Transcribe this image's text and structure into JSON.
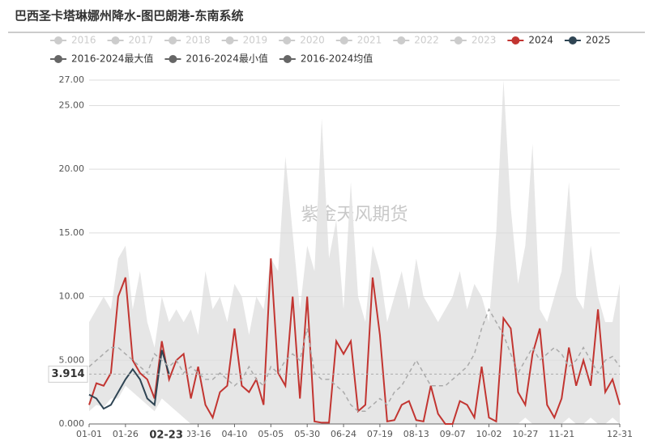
{
  "chart_data": {
    "type": "line",
    "title": "巴西圣卡塔琳娜州降水-图巴朗港-东南系统",
    "watermark": "紫金天风期货",
    "categories": [
      "01-01",
      null,
      null,
      null,
      null,
      "01-26",
      null,
      null,
      null,
      null,
      null,
      null,
      null,
      null,
      null,
      "03-16",
      null,
      null,
      null,
      null,
      "04-10",
      null,
      null,
      null,
      null,
      "05-05",
      null,
      null,
      null,
      null,
      "05-30",
      null,
      null,
      null,
      null,
      "06-24",
      null,
      null,
      null,
      null,
      "07-19",
      null,
      null,
      null,
      null,
      "08-13",
      null,
      null,
      null,
      null,
      "09-07",
      null,
      null,
      null,
      null,
      "10-02",
      null,
      null,
      null,
      null,
      "10-27",
      null,
      null,
      null,
      null,
      "11-21",
      null,
      null,
      null,
      null,
      null,
      null,
      null,
      "12-31"
    ],
    "legend_inactive": [
      "2016",
      "2017",
      "2018",
      "2019",
      "2020",
      "2021",
      "2022",
      "2023"
    ],
    "legend_inactive_color": "#ccc",
    "band_color": "#e6e6e6",
    "series": [
      {
        "name": "2024",
        "color": "#c23531",
        "values": [
          1.5,
          3.2,
          3.0,
          4.0,
          10,
          11.5,
          5,
          4,
          3.5,
          2.0,
          6.5,
          3.5,
          5,
          5.5,
          2,
          4.5,
          1.5,
          0.5,
          2.5,
          3,
          7.5,
          3,
          2.5,
          3.5,
          1.5,
          13,
          4,
          3,
          10,
          2,
          10,
          0.2,
          0.1,
          0.1,
          6.5,
          5.5,
          6.5,
          1,
          1.5,
          11.5,
          7,
          0.2,
          0.3,
          1.5,
          1.8,
          0.3,
          0.2,
          3,
          0.8,
          0,
          0,
          1.8,
          1.5,
          0.5,
          4.5,
          0.5,
          0.2,
          8.3,
          7.5,
          2.5,
          1.5,
          5.5,
          7.5,
          1.5,
          0.5,
          2,
          6,
          3,
          5,
          3,
          9,
          2.5,
          3.5,
          1.5
        ]
      },
      {
        "name": "2025",
        "color": "#2f4554",
        "values": [
          2.3,
          2.0,
          1.2,
          1.5,
          2.5,
          3.5,
          4.3,
          3.5,
          2.0,
          1.5,
          5.8,
          3.914,
          null,
          null,
          null,
          null,
          null,
          null,
          null,
          null,
          null,
          null,
          null,
          null,
          null,
          null,
          null,
          null,
          null,
          null,
          null,
          null,
          null,
          null,
          null,
          null,
          null,
          null,
          null,
          null,
          null,
          null,
          null,
          null,
          null,
          null,
          null,
          null,
          null,
          null,
          null,
          null,
          null,
          null,
          null,
          null,
          null,
          null,
          null,
          null,
          null,
          null,
          null,
          null,
          null,
          null,
          null,
          null,
          null,
          null,
          null,
          null,
          null,
          null
        ]
      },
      {
        "name": "2016-2024最大值",
        "color": "#666",
        "role": "band-top",
        "values": [
          8,
          9,
          10,
          9,
          13,
          14,
          9,
          12,
          8,
          6,
          10,
          8,
          9,
          8,
          9,
          7,
          12,
          9,
          10,
          8,
          11,
          10,
          7,
          10,
          9,
          13,
          12,
          21,
          15,
          9,
          14,
          12,
          24,
          13,
          16,
          9,
          19,
          10,
          8,
          14,
          12,
          8,
          10,
          12,
          9,
          13,
          10,
          9,
          8,
          9,
          10,
          12,
          9,
          11,
          10,
          8,
          15,
          27,
          17,
          11,
          14,
          22,
          9,
          8,
          10,
          12,
          19,
          10,
          9,
          14,
          10,
          8,
          8,
          11
        ]
      },
      {
        "name": "2016-2024最小值",
        "color": "#666",
        "role": "band-bottom",
        "values": [
          1,
          1.5,
          1.3,
          2,
          2,
          3,
          2.5,
          2,
          1.5,
          1,
          2,
          1.5,
          1,
          0.5,
          0,
          0,
          0,
          0,
          0,
          0,
          0,
          0,
          0,
          0,
          0,
          0,
          0,
          0,
          0,
          0,
          0,
          0,
          0,
          0,
          0,
          0,
          0,
          0,
          0,
          0,
          0,
          0,
          0,
          0,
          0,
          0,
          0,
          0,
          0,
          0,
          0,
          0,
          0,
          0,
          0,
          0,
          0,
          0,
          0,
          0,
          0.5,
          0,
          0,
          0,
          0,
          0,
          0.5,
          0,
          0,
          0.5,
          0,
          0,
          0.5,
          0
        ]
      },
      {
        "name": "2016-2024均值",
        "color": "#666",
        "role": "dashed",
        "line_color": "#aaa",
        "values": [
          4.5,
          5,
          5.5,
          6,
          6,
          5.5,
          5,
          4.5,
          4,
          5.5,
          5,
          4.5,
          5,
          4,
          4.5,
          4,
          3.5,
          3.5,
          4,
          3.5,
          3,
          3.5,
          4.5,
          3.5,
          3,
          4.5,
          4,
          5,
          5.5,
          5,
          7.5,
          4,
          3.5,
          3.5,
          3,
          2.5,
          1.5,
          1,
          1,
          1.5,
          2,
          1.5,
          2.5,
          3,
          4,
          5,
          4,
          3,
          3,
          3,
          3.5,
          4,
          4.5,
          5.5,
          7.5,
          9,
          8,
          7,
          5.5,
          4,
          5,
          6,
          5,
          5.5,
          6,
          5.5,
          4.5,
          5,
          6,
          5,
          4,
          5,
          5.3,
          4.5
        ]
      }
    ],
    "ylim": [
      0,
      27
    ],
    "yticks": [
      {
        "value": 0,
        "label": "0.000"
      },
      {
        "value": 5,
        "label": "5.000"
      },
      {
        "value": 10,
        "label": "10.00"
      },
      {
        "value": 15,
        "label": "15.00"
      },
      {
        "value": 20,
        "label": "20.00"
      },
      {
        "value": 25,
        "label": "25.00"
      },
      {
        "value": 27,
        "label": "27.00"
      }
    ],
    "grid": true,
    "pointer": {
      "x_label": "02-23",
      "y": 3.914,
      "y_label": "3.914"
    }
  }
}
